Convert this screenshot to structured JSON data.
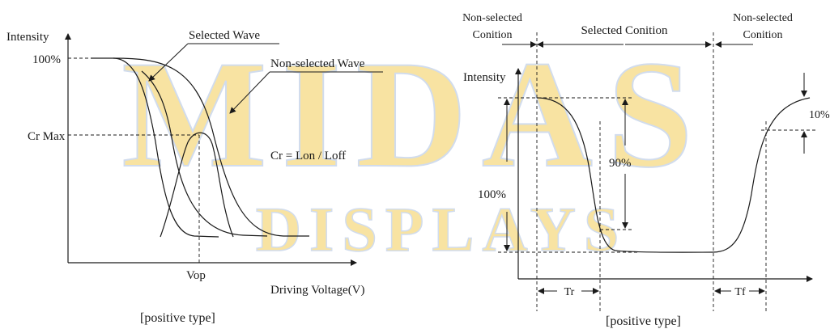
{
  "watermark": {
    "line1": "MIDAS",
    "line2": "DISPLAYS",
    "color": "#f5d77a",
    "outline": "#b0c4e0"
  },
  "left_diagram": {
    "y_axis_label": "Intensity",
    "x_axis_label": "Driving Voltage(V)",
    "label_100": "100%",
    "label_crmax": "Cr Max",
    "label_vop": "Vop",
    "selected_wave": "Selected Wave",
    "nonselected_wave": "Non-selected Wave",
    "formula": "Cr = Lon / Loff",
    "caption": "[positive type]"
  },
  "right_diagram": {
    "y_axis_label": "Intensity",
    "header_left_1": "Non-selected",
    "header_left_2": "Conition",
    "header_middle": "Selected Conition",
    "header_right_1": "Non-selected",
    "header_right_2": "Conition",
    "label_100": "100%",
    "label_90": "90%",
    "label_10": "10%",
    "label_tr": "Tr",
    "label_tf": "Tf",
    "caption": "[positive type]"
  }
}
